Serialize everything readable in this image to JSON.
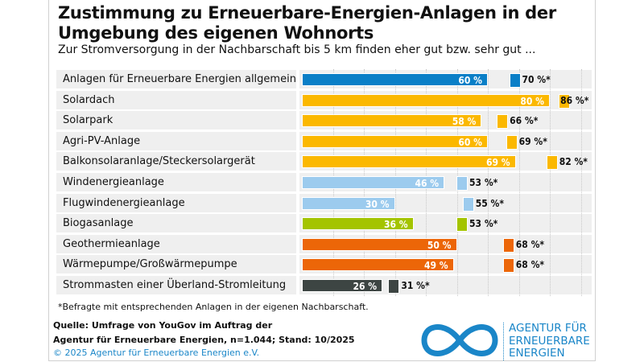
{
  "title": "Zustimmung zu Erneuerbare-Energien-Anlagen in der Umgebung des eigenen Wohnorts",
  "subtitle": "Zur Stromversorgung in der Nachbarschaft bis 5 km finden eher gut bzw. sehr gut ...",
  "chart_data": {
    "type": "bar",
    "orientation": "horizontal",
    "xlim": [
      0,
      100
    ],
    "grid": true,
    "categories": [
      "Anlagen für Erneuerbare Energien allgemein",
      "Solardach",
      "Solarpark",
      "Agri-PV-Anlage",
      "Balkonsolaranlage/Steckersolargerät",
      "Windenergieanlage",
      "Flugwindenergieanlage",
      "Biogasanlage",
      "Geothermieanlage",
      "Wärmepumpe/Großwärmepumpe",
      "Strommasten einer Überland-Stromleitung"
    ],
    "colors": [
      "#0a7fc7",
      "#fbb800",
      "#fbb800",
      "#fbb800",
      "#fbb800",
      "#9ccbee",
      "#9ccbee",
      "#a4c400",
      "#ec6608",
      "#ec6608",
      "#3d4543"
    ],
    "series": [
      {
        "values": [
          60,
          80,
          58,
          60,
          69,
          46,
          30,
          36,
          50,
          49,
          26
        ],
        "labels": [
          "60 %",
          "80 %",
          "58 %",
          "60 %",
          "69 %",
          "46 %",
          "30 %",
          "36 %",
          "50 %",
          "49 %",
          "26 %"
        ]
      },
      {
        "values": [
          70,
          86,
          66,
          69,
          82,
          53,
          55,
          53,
          68,
          68,
          31
        ],
        "labels": [
          "70 %*",
          "86 %*",
          "66 %*",
          "69 %*",
          "82 %*",
          "53 %*",
          "55 %*",
          "53 %*",
          "68 %*",
          "68 %*",
          "31 %*"
        ]
      }
    ]
  },
  "footnote": "*Befragte mit entsprechenden Anlagen in der eigenen Nachbarschaft.",
  "source_line1": "Quelle: Umfrage von YouGov im Auftrag der",
  "source_line2": "Agentur für Erneuerbare Energien, n=1.044; Stand: 10/2025",
  "copyright": "© 2025 Agentur für Erneuerbare Energien e.V.",
  "logo": {
    "line1": "AGENTUR FÜR",
    "line2": "ERNEUERBARE",
    "line3": "ENERGIEN"
  }
}
